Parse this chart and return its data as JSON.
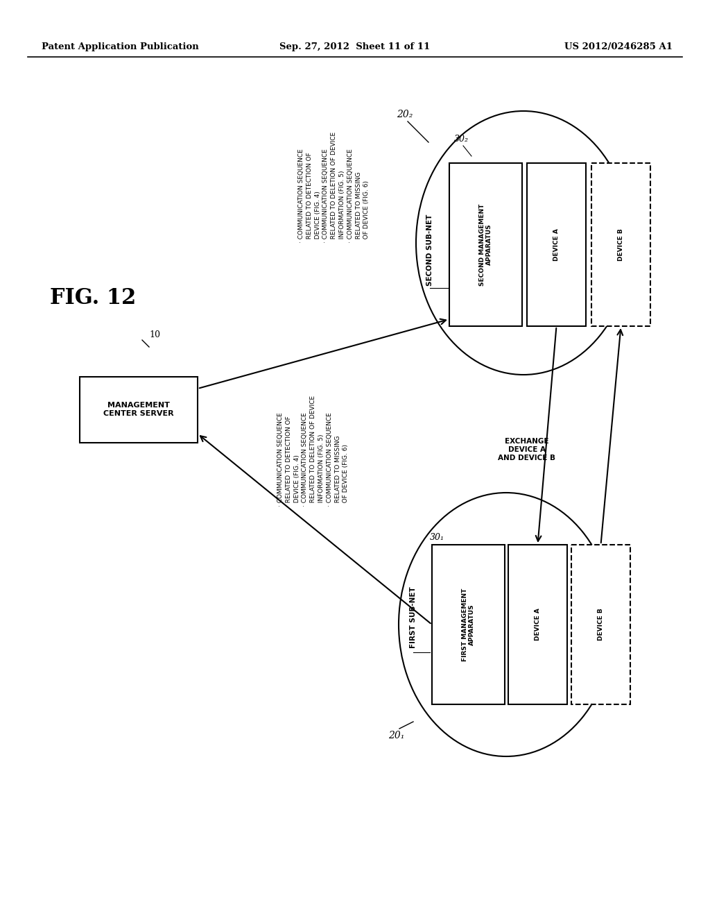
{
  "title_fig": "FIG. 12",
  "header_left": "Patent Application Publication",
  "header_center": "Sep. 27, 2012  Sheet 11 of 11",
  "header_right": "US 2012/0246285 A1",
  "bg_color": "#ffffff",
  "mgmt_server_label": "MANAGEMENT\nCENTER SERVER",
  "mgmt_server_ref": "10",
  "subnet1_ref": "20₁",
  "subnet2_ref": "20₂",
  "sub1_label": "FIRST SUB-NET",
  "sub2_label": "SECOND SUB-NET",
  "mgmt_app1_ref": "30₁",
  "mgmt_app2_ref": "30₂",
  "mgmt_app1_label": "FIRST MANAGEMENT\nAPPARATUS",
  "mgmt_app2_label": "SECOND MANAGEMENT\nAPPARATUS",
  "device_a_label": "DEVICE A",
  "device_b_label": "DEVICE B",
  "exchange_label": "EXCHANGE\nDEVICE A\nAND DEVICE B",
  "annot_line1": "· COMMUNICATION SEQUENCE",
  "annot_line2": "  RELATED TO DETECTION OF",
  "annot_line3": "  DEVICE (FIG. 4)",
  "annot_line4": "· COMMUNICATION SEQUENCE",
  "annot_line5": "  RELATED TO DELETION OF DEVICE",
  "annot_line6": "  INFORMATION (FIG. 5)",
  "annot_line7": "· COMMUNICATION SEQUENCE",
  "annot_line8": "  RELATED TO MISSING",
  "annot_line9": "  OF DEVICE (FIG. 6)"
}
